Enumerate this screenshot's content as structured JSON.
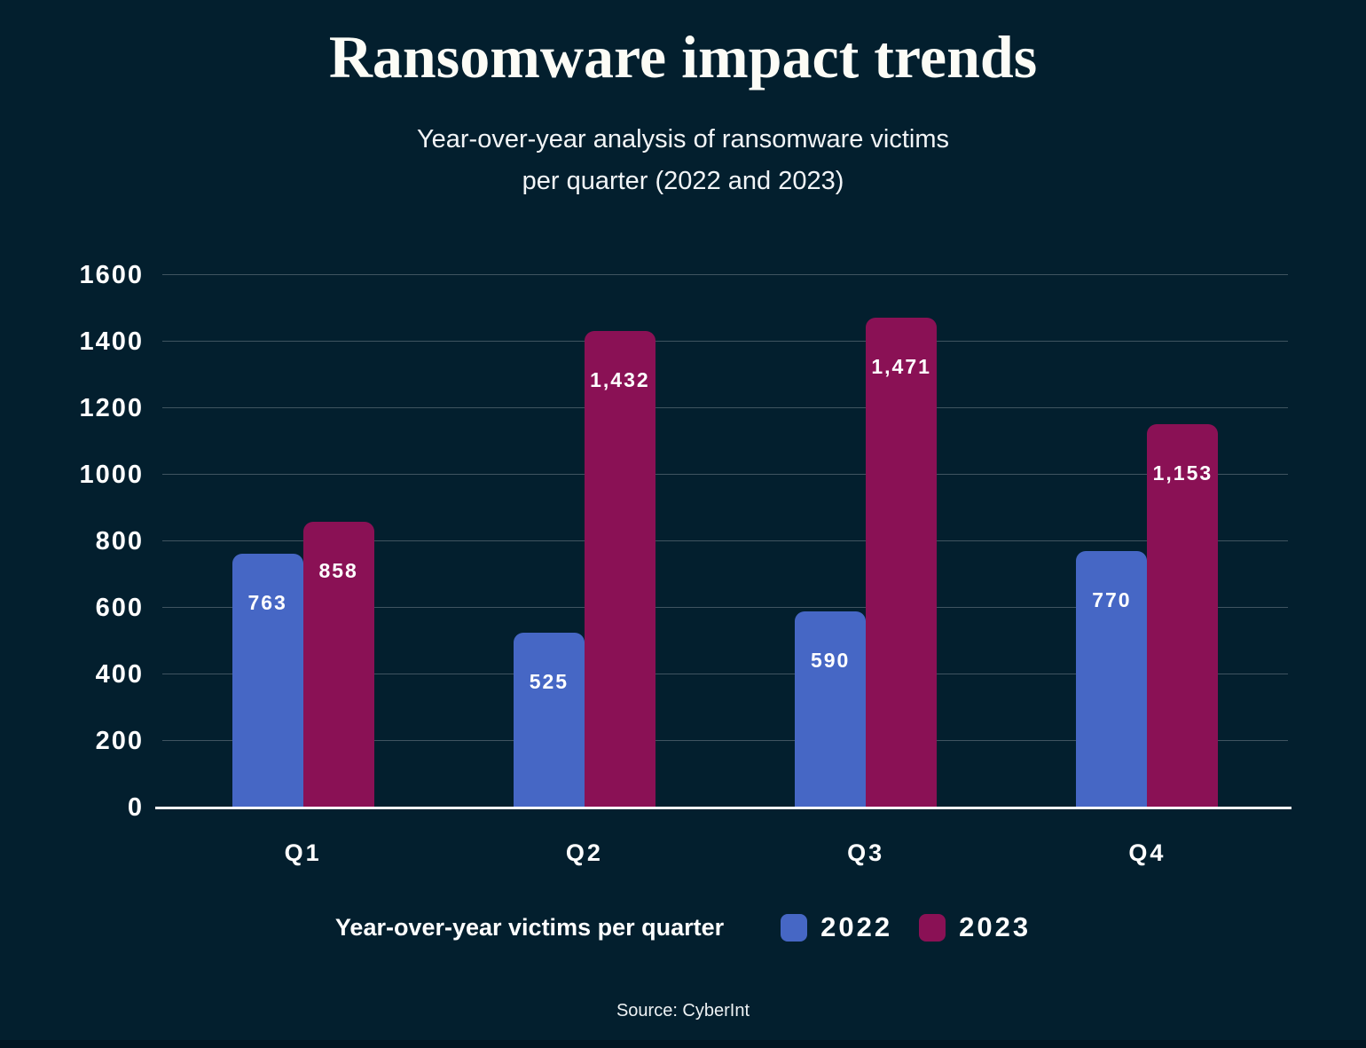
{
  "header": {
    "title": "Ransomware impact trends",
    "subtitle_line1": "Year-over-year analysis of ransomware victims",
    "subtitle_line2": "per quarter (2022 and 2023)"
  },
  "chart_data": {
    "type": "bar",
    "title": "Ransomware impact trends",
    "subtitle": "Year-over-year analysis of ransomware victims per quarter (2022 and 2023)",
    "categories": [
      "Q1",
      "Q2",
      "Q3",
      "Q4"
    ],
    "series": [
      {
        "name": "2022",
        "color": "#4667c5",
        "values": [
          763,
          525,
          590,
          770
        ],
        "display": [
          "763",
          "525",
          "590",
          "770"
        ]
      },
      {
        "name": "2023",
        "color": "#8a1155",
        "values": [
          858,
          1432,
          1471,
          1153
        ],
        "display": [
          "858",
          "1,432",
          "1,471",
          "1,153"
        ]
      }
    ],
    "xlabel": "",
    "ylabel": "",
    "ylim": [
      0,
      1600
    ],
    "yticks": [
      0,
      200,
      400,
      600,
      800,
      1000,
      1200,
      1400,
      1600
    ],
    "grid": "horizontal",
    "legend_position": "bottom",
    "value_labels": "inside-top"
  },
  "legend": {
    "title": "Year-over-year victims per quarter",
    "items": [
      {
        "label": "2022",
        "color": "#4667c5"
      },
      {
        "label": "2023",
        "color": "#8a1155"
      }
    ]
  },
  "footer": {
    "source": "Source: CyberInt"
  },
  "colors": {
    "background": "#031f2e",
    "bar_2022": "#4667c5",
    "bar_2023": "#8a1155",
    "gridline": "rgba(255,255,255,0.24)",
    "axis": "#ffffff",
    "text": "#ffffff",
    "bottom_strip": "#021623"
  }
}
